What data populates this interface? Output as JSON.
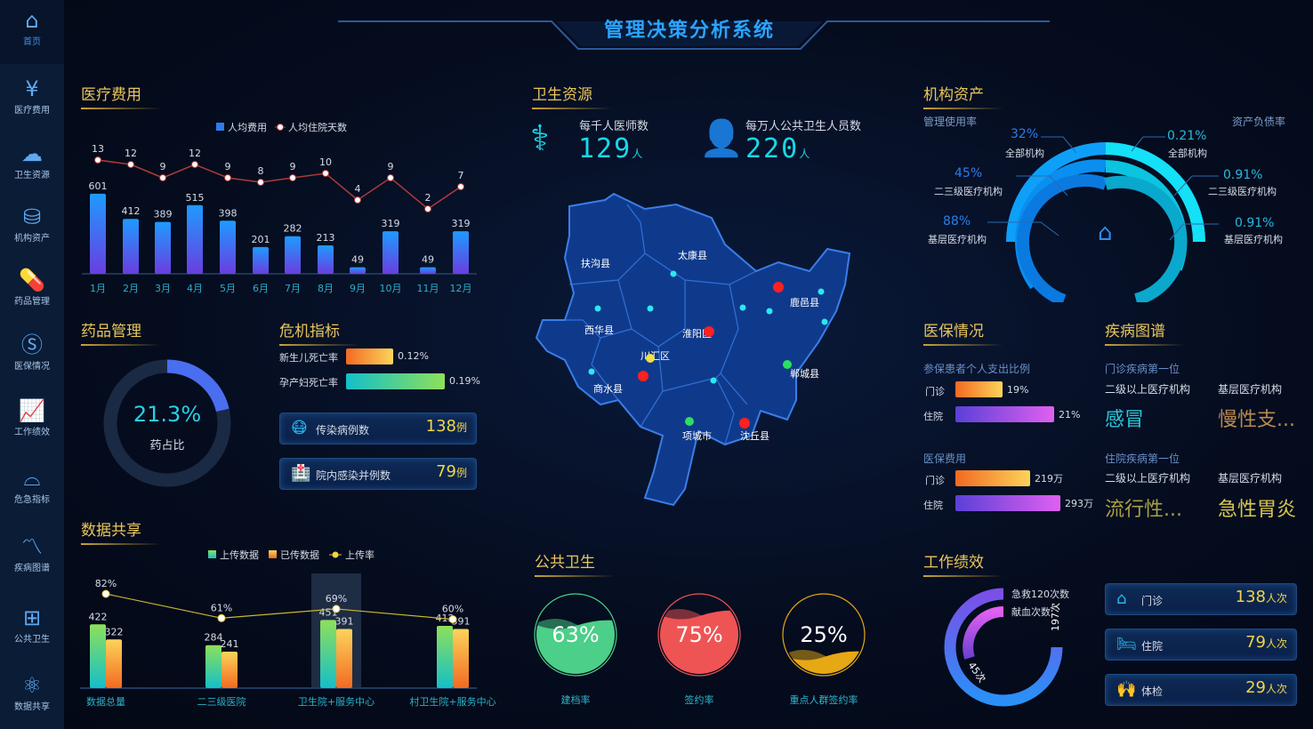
{
  "title": "管理决策分析系统",
  "sidebar": {
    "items": [
      {
        "label": "首页",
        "icon": "home-icon"
      },
      {
        "label": "医疗费用",
        "icon": "yuan-house-icon"
      },
      {
        "label": "卫生资源",
        "icon": "cloud-icon"
      },
      {
        "label": "机构资产",
        "icon": "database-icon"
      },
      {
        "label": "药品管理",
        "icon": "pill-icon"
      },
      {
        "label": "医保情况",
        "icon": "shield-s-icon"
      },
      {
        "label": "工作绩效",
        "icon": "line-chart-icon"
      },
      {
        "label": "危急指标",
        "icon": "bell-icon"
      },
      {
        "label": "疾病图谱",
        "icon": "trend-icon"
      },
      {
        "label": "公共卫生",
        "icon": "plus-box-icon"
      },
      {
        "label": "数据共享",
        "icon": "share-icon"
      }
    ]
  },
  "sections": {
    "medical_cost": "医疗费用",
    "drug": "药品管理",
    "crisis": "危机指标",
    "data_share": "数据共享",
    "health_res": "卫生资源",
    "public_health": "公共卫生",
    "assets": "机构资产",
    "insurance": "医保情况",
    "disease": "疾病图谱",
    "performance": "工作绩效"
  },
  "chart_data": [
    {
      "type": "bar",
      "name": "medical-cost",
      "legend": [
        "人均费用",
        "人均住院天数"
      ],
      "categories": [
        "1月",
        "2月",
        "3月",
        "4月",
        "5月",
        "6月",
        "7月",
        "8月",
        "9月",
        "10月",
        "11月",
        "12月"
      ],
      "series": [
        {
          "name": "人均费用",
          "type": "bar",
          "values": [
            601,
            412,
            389,
            515,
            398,
            201,
            282,
            213,
            49,
            319,
            49,
            319
          ]
        },
        {
          "name": "人均住院天数",
          "type": "line",
          "values": [
            13,
            12,
            9,
            12,
            9,
            8,
            9,
            10,
            4,
            9,
            2,
            7
          ]
        }
      ],
      "colors": {
        "bar_top": "#1e9bff",
        "bar_bottom": "#6a3de0",
        "line": "#b03a3a"
      }
    },
    {
      "type": "bar",
      "name": "data-share",
      "legend": [
        "上传数据",
        "已传数据",
        "上传率"
      ],
      "categories": [
        "数据总量",
        "二三级医院",
        "卫生院+服务中心",
        "村卫生院+服务中心"
      ],
      "series": [
        {
          "name": "上传数据",
          "type": "bar",
          "values": [
            422,
            284,
            451,
            412
          ]
        },
        {
          "name": "已传数据",
          "type": "bar",
          "values": [
            322,
            241,
            391,
            391
          ]
        },
        {
          "name": "上传率",
          "type": "line",
          "values": [
            82,
            61,
            69,
            60
          ],
          "unit": "%"
        }
      ],
      "highlight": "卫生院+服务中心"
    }
  ],
  "drug": {
    "value": "21.3%",
    "label": "药占比",
    "fraction": 0.213
  },
  "crisis": {
    "rows": [
      {
        "label": "新生儿死亡率",
        "value": "0.12%"
      },
      {
        "label": "孕产妇死亡率",
        "value": "0.19%"
      }
    ],
    "cards": [
      {
        "label": "传染病例数",
        "value": "138",
        "unit": "例",
        "icon": "virus-mask-icon"
      },
      {
        "label": "院内感染并例数",
        "value": "79",
        "unit": "例",
        "icon": "hospital-icon"
      }
    ]
  },
  "health_res": {
    "items": [
      {
        "label": "每千人医师数",
        "value": "129",
        "unit": "人",
        "icon": "doctor-icon"
      },
      {
        "label": "每万人公共卫生人员数",
        "value": "220",
        "unit": "人",
        "icon": "nurse-icon"
      }
    ]
  },
  "map": {
    "districts": [
      "扶沟县",
      "太康县",
      "西华县",
      "淮阳区",
      "川汇区",
      "鹿邑县",
      "商水县",
      "郸城县",
      "项城市",
      "沈丘县"
    ]
  },
  "public_health": {
    "items": [
      {
        "label": "建档率",
        "value": "63%",
        "fraction": 0.63,
        "color": "#4ccf88"
      },
      {
        "label": "签约率",
        "value": "75%",
        "fraction": 0.75,
        "color": "#ef5455"
      },
      {
        "label": "重点人群签约率",
        "value": "25%",
        "fraction": 0.25,
        "color": "#e6a814"
      }
    ]
  },
  "assets": {
    "left_title": "管理使用率",
    "right_title": "资产负债率",
    "left": [
      {
        "value": "32%",
        "label": "全部机构"
      },
      {
        "value": "45%",
        "label": "二三级医疗机构"
      },
      {
        "value": "88%",
        "label": "基层医疗机构"
      }
    ],
    "right": [
      {
        "value": "0.21%",
        "label": "全部机构"
      },
      {
        "value": "0.91%",
        "label": "二三级医疗机构"
      },
      {
        "value": "0.91%",
        "label": "基层医疗机构"
      }
    ]
  },
  "insurance": {
    "ratio_title": "参保患者个人支出比例",
    "ratio": [
      {
        "label": "门诊",
        "value": "19%"
      },
      {
        "label": "住院",
        "value": "21%"
      }
    ],
    "cost_title": "医保费用",
    "cost": [
      {
        "label": "门诊",
        "value": "219万"
      },
      {
        "label": "住院",
        "value": "293万"
      }
    ]
  },
  "disease": {
    "outpatient_title": "门诊疾病第一位",
    "inpatient_title": "住院疾病第一位",
    "col1": "二级以上医疗机构",
    "col2": "基层医疗机构",
    "outpatient": [
      "感冒",
      "慢性支..."
    ],
    "inpatient": [
      "流行性...",
      "急性胃炎"
    ]
  },
  "performance": {
    "legend": [
      "急救120次数",
      "献血次数"
    ],
    "values": [
      "197次",
      "45次"
    ],
    "cards": [
      {
        "label": "门诊",
        "value": "138",
        "unit": "人次",
        "icon": "clinic-icon"
      },
      {
        "label": "住院",
        "value": "79",
        "unit": "人次",
        "icon": "bed-icon"
      },
      {
        "label": "体检",
        "value": "29",
        "unit": "人次",
        "icon": "checkup-icon"
      }
    ]
  }
}
